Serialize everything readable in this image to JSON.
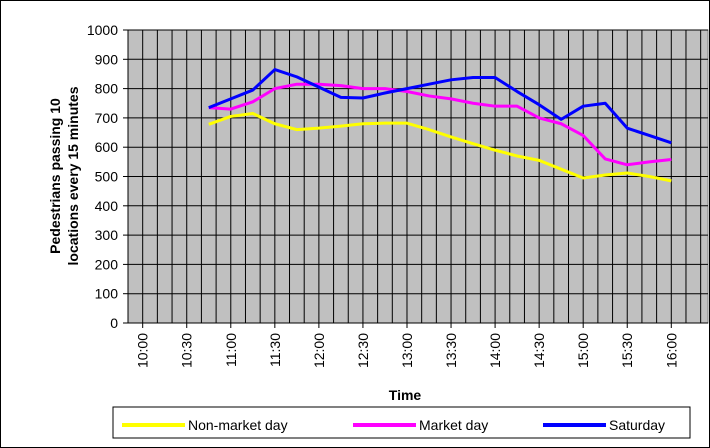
{
  "chart_data": {
    "type": "line",
    "xlabel": "Time",
    "ylabel": [
      "Pedestrians passing 10",
      "locations every 15 minutes"
    ],
    "x": [
      645,
      660,
      675,
      690,
      705,
      720,
      735,
      750,
      765,
      780,
      795,
      810,
      825,
      840,
      855,
      870,
      885,
      900,
      915,
      930,
      945,
      960
    ],
    "series": [
      {
        "name": "Non-market day",
        "color": "#ffff00",
        "values": [
          678,
          705,
          715,
          680,
          660,
          665,
          672,
          680,
          682,
          682,
          660,
          635,
          612,
          590,
          570,
          555,
          525,
          495,
          505,
          512,
          500,
          485
        ]
      },
      {
        "name": "Market day",
        "color": "#ff00ff",
        "values": [
          735,
          730,
          755,
          800,
          815,
          815,
          810,
          800,
          800,
          790,
          775,
          765,
          750,
          740,
          740,
          700,
          680,
          640,
          560,
          540,
          550,
          558
        ]
      },
      {
        "name": "Saturday",
        "color": "#0000ff",
        "values": [
          735,
          765,
          795,
          865,
          840,
          805,
          770,
          768,
          785,
          800,
          815,
          830,
          838,
          838,
          790,
          745,
          695,
          740,
          750,
          665,
          640,
          615
        ]
      }
    ],
    "xlim": [
      590,
      985
    ],
    "xticks": [
      {
        "value": 600,
        "label": "10:00"
      },
      {
        "value": 630,
        "label": "10:30"
      },
      {
        "value": 660,
        "label": "11:00"
      },
      {
        "value": 690,
        "label": "11:30"
      },
      {
        "value": 720,
        "label": "12:00"
      },
      {
        "value": 750,
        "label": "12:30"
      },
      {
        "value": 780,
        "label": "13:00"
      },
      {
        "value": 810,
        "label": "13:30"
      },
      {
        "value": 840,
        "label": "14:00"
      },
      {
        "value": 870,
        "label": "14:30"
      },
      {
        "value": 900,
        "label": "15:00"
      },
      {
        "value": 930,
        "label": "15:30"
      },
      {
        "value": 960,
        "label": "16:00"
      }
    ],
    "ylim": [
      0,
      1000
    ],
    "yticks": [
      0,
      100,
      200,
      300,
      400,
      500,
      600,
      700,
      800,
      900,
      1000
    ],
    "grid": true,
    "legend": "bottom"
  }
}
